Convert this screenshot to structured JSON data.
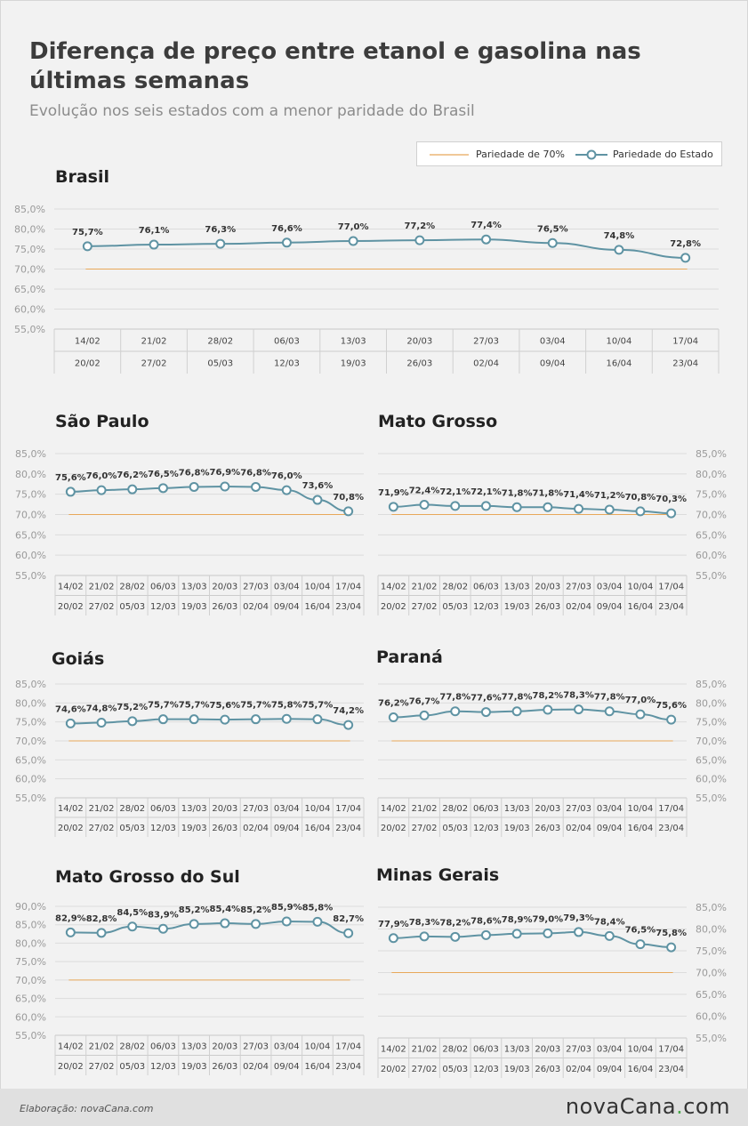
{
  "header": {
    "title": "Diferença de preço entre etanol e gasolina nas últimas semanas",
    "subtitle": "Evolução nos seis estados com a menor paridade do Brasil"
  },
  "legend": {
    "threshold_label": "Pariedade de 70%",
    "state_label": "Pariedade do Estado"
  },
  "colors": {
    "line": "#5f93a3",
    "threshold": "#e8a85a",
    "grid": "#dcdcdc"
  },
  "footer": {
    "credit": "Elaboração: novaCana.com",
    "logo_left": "novaCana",
    "logo_dot": ".",
    "logo_right": "com"
  },
  "chart_data": [
    {
      "type": "line",
      "title": "Brasil",
      "ylim": [
        55,
        85
      ],
      "threshold": 70,
      "yticks": [
        "85,0%",
        "80,0%",
        "75,0%",
        "70,0%",
        "65,0%",
        "60,0%",
        "55,0%"
      ],
      "categories_top": [
        "14/02",
        "21/02",
        "28/02",
        "06/03",
        "13/03",
        "20/03",
        "27/03",
        "03/04",
        "10/04",
        "17/04"
      ],
      "categories_bottom": [
        "20/02",
        "27/02",
        "05/03",
        "12/03",
        "19/03",
        "26/03",
        "02/04",
        "09/04",
        "16/04",
        "23/04"
      ],
      "values": [
        75.7,
        76.1,
        76.3,
        76.6,
        77.0,
        77.2,
        77.4,
        76.5,
        74.8,
        72.8
      ],
      "labels": [
        "75,7%",
        "76,1%",
        "76,3%",
        "76,6%",
        "77,0%",
        "77,2%",
        "77,4%",
        "76,5%",
        "74,8%",
        "72,8%"
      ]
    },
    {
      "type": "line",
      "title": "São Paulo",
      "ylim": [
        55,
        85
      ],
      "threshold": 70,
      "yticks": [
        "85,0%",
        "80,0%",
        "75,0%",
        "70,0%",
        "65,0%",
        "60,0%",
        "55,0%"
      ],
      "categories_top": [
        "14/02",
        "21/02",
        "28/02",
        "06/03",
        "13/03",
        "20/03",
        "27/03",
        "03/04",
        "10/04",
        "17/04"
      ],
      "categories_bottom": [
        "20/02",
        "27/02",
        "05/03",
        "12/03",
        "19/03",
        "26/03",
        "02/04",
        "09/04",
        "16/04",
        "23/04"
      ],
      "values": [
        75.6,
        76.0,
        76.2,
        76.5,
        76.8,
        76.9,
        76.8,
        76.0,
        73.6,
        70.8
      ],
      "labels": [
        "75,6%",
        "76,0%",
        "76,2%",
        "76,5%",
        "76,8%",
        "76,9%",
        "76,8%",
        "76,0%",
        "73,6%",
        "70,8%"
      ]
    },
    {
      "type": "line",
      "title": "Mato Grosso",
      "ylim": [
        55,
        85
      ],
      "threshold": 70,
      "yticks": [
        "85,0%",
        "80,0%",
        "75,0%",
        "70,0%",
        "65,0%",
        "60,0%",
        "55,0%"
      ],
      "categories_top": [
        "14/02",
        "21/02",
        "28/02",
        "06/03",
        "13/03",
        "20/03",
        "27/03",
        "03/04",
        "10/04",
        "17/04"
      ],
      "categories_bottom": [
        "20/02",
        "27/02",
        "05/03",
        "12/03",
        "19/03",
        "26/03",
        "02/04",
        "09/04",
        "16/04",
        "23/04"
      ],
      "values": [
        71.9,
        72.4,
        72.1,
        72.1,
        71.8,
        71.8,
        71.4,
        71.2,
        70.8,
        70.3
      ],
      "labels": [
        "71,9%",
        "72,4%",
        "72,1%",
        "72,1%",
        "71,8%",
        "71,8%",
        "71,4%",
        "71,2%",
        "70,8%",
        "70,3%"
      ]
    },
    {
      "type": "line",
      "title": "Goiás",
      "ylim": [
        55,
        85
      ],
      "threshold": 70,
      "yticks": [
        "85,0%",
        "80,0%",
        "75,0%",
        "70,0%",
        "65,0%",
        "60,0%",
        "55,0%"
      ],
      "categories_top": [
        "14/02",
        "21/02",
        "28/02",
        "06/03",
        "13/03",
        "20/03",
        "27/03",
        "03/04",
        "10/04",
        "17/04"
      ],
      "categories_bottom": [
        "20/02",
        "27/02",
        "05/03",
        "12/03",
        "19/03",
        "26/03",
        "02/04",
        "09/04",
        "16/04",
        "23/04"
      ],
      "values": [
        74.6,
        74.8,
        75.2,
        75.7,
        75.7,
        75.6,
        75.7,
        75.8,
        75.7,
        74.2
      ],
      "labels": [
        "74,6%",
        "74,8%",
        "75,2%",
        "75,7%",
        "75,7%",
        "75,6%",
        "75,7%",
        "75,8%",
        "75,7%",
        "74,2%"
      ]
    },
    {
      "type": "line",
      "title": "Paraná",
      "ylim": [
        55,
        85
      ],
      "threshold": 70,
      "yticks": [
        "85,0%",
        "80,0%",
        "75,0%",
        "70,0%",
        "65,0%",
        "60,0%",
        "55,0%"
      ],
      "categories_top": [
        "14/02",
        "21/02",
        "28/02",
        "06/03",
        "13/03",
        "20/03",
        "27/03",
        "03/04",
        "10/04",
        "17/04"
      ],
      "categories_bottom": [
        "20/02",
        "27/02",
        "05/03",
        "12/03",
        "19/03",
        "26/03",
        "02/04",
        "09/04",
        "16/04",
        "23/04"
      ],
      "values": [
        76.2,
        76.7,
        77.8,
        77.6,
        77.8,
        78.2,
        78.3,
        77.8,
        77.0,
        75.6
      ],
      "labels": [
        "76,2%",
        "76,7%",
        "77,8%",
        "77,6%",
        "77,8%",
        "78,2%",
        "78,3%",
        "77,8%",
        "77,0%",
        "75,6%"
      ]
    },
    {
      "type": "line",
      "title": "Mato Grosso do Sul",
      "ylim": [
        55,
        90
      ],
      "threshold": 70,
      "yticks": [
        "90,0%",
        "85,0%",
        "80,0%",
        "75,0%",
        "70,0%",
        "65,0%",
        "60,0%",
        "55,0%"
      ],
      "categories_top": [
        "14/02",
        "21/02",
        "28/02",
        "06/03",
        "13/03",
        "20/03",
        "27/03",
        "03/04",
        "10/04",
        "17/04"
      ],
      "categories_bottom": [
        "20/02",
        "27/02",
        "05/03",
        "12/03",
        "19/03",
        "26/03",
        "02/04",
        "09/04",
        "16/04",
        "23/04"
      ],
      "values": [
        82.9,
        82.8,
        84.5,
        83.9,
        85.2,
        85.4,
        85.2,
        85.9,
        85.8,
        82.7
      ],
      "labels": [
        "82,9%",
        "82,8%",
        "84,5%",
        "83,9%",
        "85,2%",
        "85,4%",
        "85,2%",
        "85,9%",
        "85,8%",
        "82,7%"
      ]
    },
    {
      "type": "line",
      "title": "Minas Gerais",
      "ylim": [
        55,
        85
      ],
      "threshold": 70,
      "yticks": [
        "85,0%",
        "80,0%",
        "75,0%",
        "70,0%",
        "65,0%",
        "60,0%",
        "55,0%"
      ],
      "categories_top": [
        "14/02",
        "21/02",
        "28/02",
        "06/03",
        "13/03",
        "20/03",
        "27/03",
        "03/04",
        "10/04",
        "17/04"
      ],
      "categories_bottom": [
        "20/02",
        "27/02",
        "05/03",
        "12/03",
        "19/03",
        "26/03",
        "02/04",
        "09/04",
        "16/04",
        "23/04"
      ],
      "values": [
        77.9,
        78.3,
        78.2,
        78.6,
        78.9,
        79.0,
        79.3,
        78.4,
        76.5,
        75.8
      ],
      "labels": [
        "77,9%",
        "78,3%",
        "78,2%",
        "78,6%",
        "78,9%",
        "79,0%",
        "79,3%",
        "78,4%",
        "76,5%",
        "75,8%"
      ]
    }
  ]
}
